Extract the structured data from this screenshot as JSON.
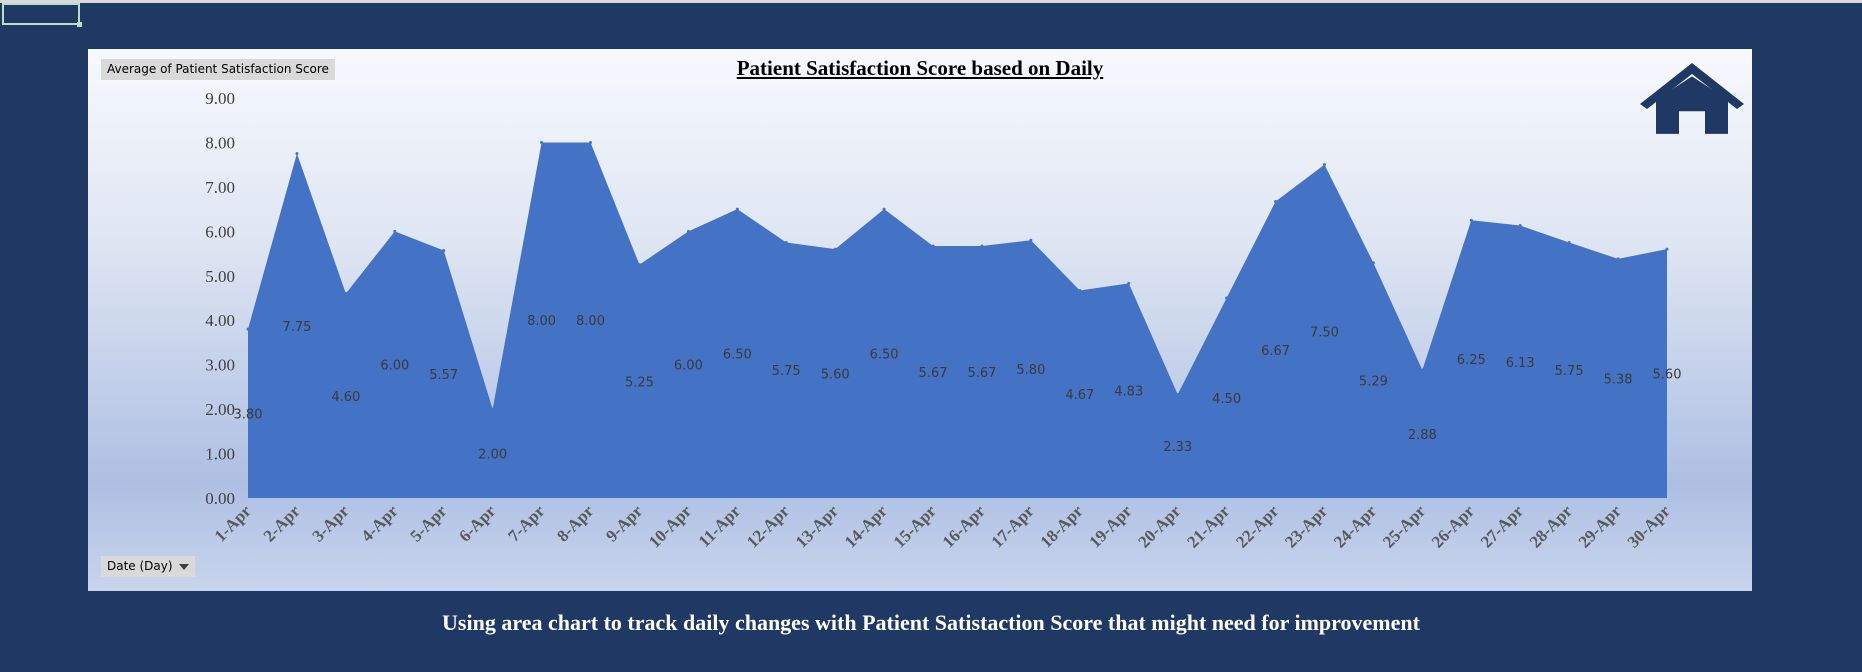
{
  "chart_data": {
    "type": "area",
    "title": "Patient Satisfaction Score based on Daily",
    "xlabel": "",
    "ylabel": "",
    "categories": [
      "1-Apr",
      "2-Apr",
      "3-Apr",
      "4-Apr",
      "5-Apr",
      "6-Apr",
      "7-Apr",
      "8-Apr",
      "9-Apr",
      "10-Apr",
      "11-Apr",
      "12-Apr",
      "13-Apr",
      "14-Apr",
      "15-Apr",
      "16-Apr",
      "17-Apr",
      "18-Apr",
      "19-Apr",
      "20-Apr",
      "21-Apr",
      "22-Apr",
      "23-Apr",
      "24-Apr",
      "25-Apr",
      "26-Apr",
      "27-Apr",
      "28-Apr",
      "29-Apr",
      "30-Apr"
    ],
    "values": [
      3.8,
      7.75,
      4.6,
      6.0,
      5.57,
      2.0,
      8.0,
      8.0,
      5.25,
      6.0,
      6.5,
      5.75,
      5.6,
      6.5,
      5.67,
      5.67,
      5.8,
      4.67,
      4.83,
      2.33,
      4.5,
      6.67,
      7.5,
      5.29,
      2.88,
      6.25,
      6.13,
      5.75,
      5.38,
      5.6
    ],
    "data_labels": [
      "3.80",
      "7.75",
      "4.60",
      "6.00",
      "5.57",
      "2.00",
      "8.00",
      "8.00",
      "5.25",
      "6.00",
      "6.50",
      "5.75",
      "5.60",
      "6.50",
      "5.67",
      "5.67",
      "5.80",
      "4.67",
      "4.83",
      "2.33",
      "4.50",
      "6.67",
      "7.50",
      "5.29",
      "2.88",
      "6.25",
      "6.13",
      "5.75",
      "5.38",
      "5.60"
    ],
    "ylim": [
      0,
      9
    ],
    "yticks": [
      "0.00",
      "1.00",
      "2.00",
      "3.00",
      "4.00",
      "5.00",
      "6.00",
      "7.00",
      "8.00",
      "9.00"
    ],
    "grid": false,
    "legend": "none",
    "colors": {
      "area": "#4472c4"
    }
  },
  "pivot": {
    "value_field": "Average of Patient Satisfaction Score",
    "axis_field": "Date (Day)"
  },
  "icons": {
    "home": "home-icon",
    "dropdown": "chevron-down-icon"
  },
  "caption": "Using area chart to track daily changes with Patient Satistaction Score that might need for improvement",
  "colors": {
    "background": "#1f3864",
    "icon": "#1f3864"
  }
}
